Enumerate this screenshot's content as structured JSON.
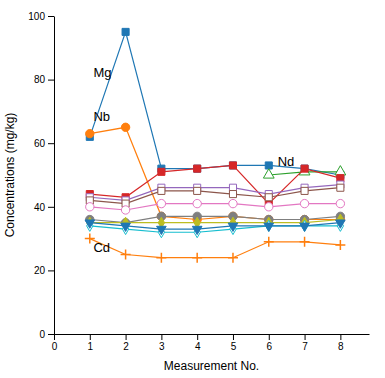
{
  "chart_data": {
    "type": "line",
    "x": [
      1,
      2,
      3,
      4,
      5,
      6,
      7,
      8
    ],
    "series": [
      {
        "values": [
          62,
          95,
          52,
          52,
          53,
          53,
          52,
          50
        ],
        "marker": "square",
        "line_style": "solid"
      },
      {
        "values": [
          63,
          65,
          37,
          36,
          37,
          36,
          36,
          36
        ],
        "marker": "circle",
        "line_style": "solid"
      },
      {
        "values": [
          null,
          null,
          null,
          null,
          null,
          50,
          51,
          51
        ],
        "marker": "triangle-up-open",
        "line_style": "solid"
      },
      {
        "values": [
          44,
          43,
          51,
          52,
          53,
          41,
          52,
          49
        ],
        "marker": "square",
        "line_style": "solid"
      },
      {
        "values": [
          43,
          42,
          46,
          46,
          46,
          44,
          46,
          47
        ],
        "marker": "square-open",
        "line_style": "solid"
      },
      {
        "values": [
          42,
          41,
          45,
          45,
          44,
          43,
          45,
          46
        ],
        "marker": "square-open",
        "line_style": "solid"
      },
      {
        "values": [
          40,
          39,
          41,
          41,
          41,
          40,
          41,
          41
        ],
        "marker": "circle-open",
        "line_style": "solid"
      },
      {
        "values": [
          36,
          35,
          37,
          37,
          37,
          36,
          36,
          37
        ],
        "marker": "circle",
        "line_style": "solid"
      },
      {
        "values": [
          35,
          35,
          35,
          35,
          35,
          35,
          35,
          36
        ],
        "marker": "diamond",
        "line_style": "solid"
      },
      {
        "values": [
          34,
          33,
          32,
          32,
          33,
          34,
          34,
          34
        ],
        "marker": "diamond-open",
        "line_style": "solid"
      },
      {
        "values": [
          35,
          34,
          33,
          33,
          34,
          34,
          34,
          35
        ],
        "marker": "triangle-down",
        "line_style": "solid"
      },
      {
        "values": [
          30,
          25,
          24,
          24,
          24,
          29,
          29,
          28
        ],
        "marker": "plus",
        "line_style": "solid"
      }
    ],
    "annotations": [
      {
        "text": "Mg",
        "x": 1.1,
        "y": 82
      },
      {
        "text": "Nb",
        "x": 1.1,
        "y": 68
      },
      {
        "text": "Nd",
        "x": 6.25,
        "y": 54
      },
      {
        "text": "Cd",
        "x": 1.1,
        "y": 27
      }
    ],
    "xlabel": "Measurement No.",
    "ylabel": "Concentrations (mg/kg)",
    "xlim": [
      0,
      8.8
    ],
    "ylim": [
      0,
      100
    ],
    "xticks": [
      0,
      1,
      2,
      3,
      4,
      5,
      6,
      7,
      8
    ],
    "yticks": [
      0,
      20,
      40,
      60,
      80,
      100
    ],
    "grid": false
  }
}
